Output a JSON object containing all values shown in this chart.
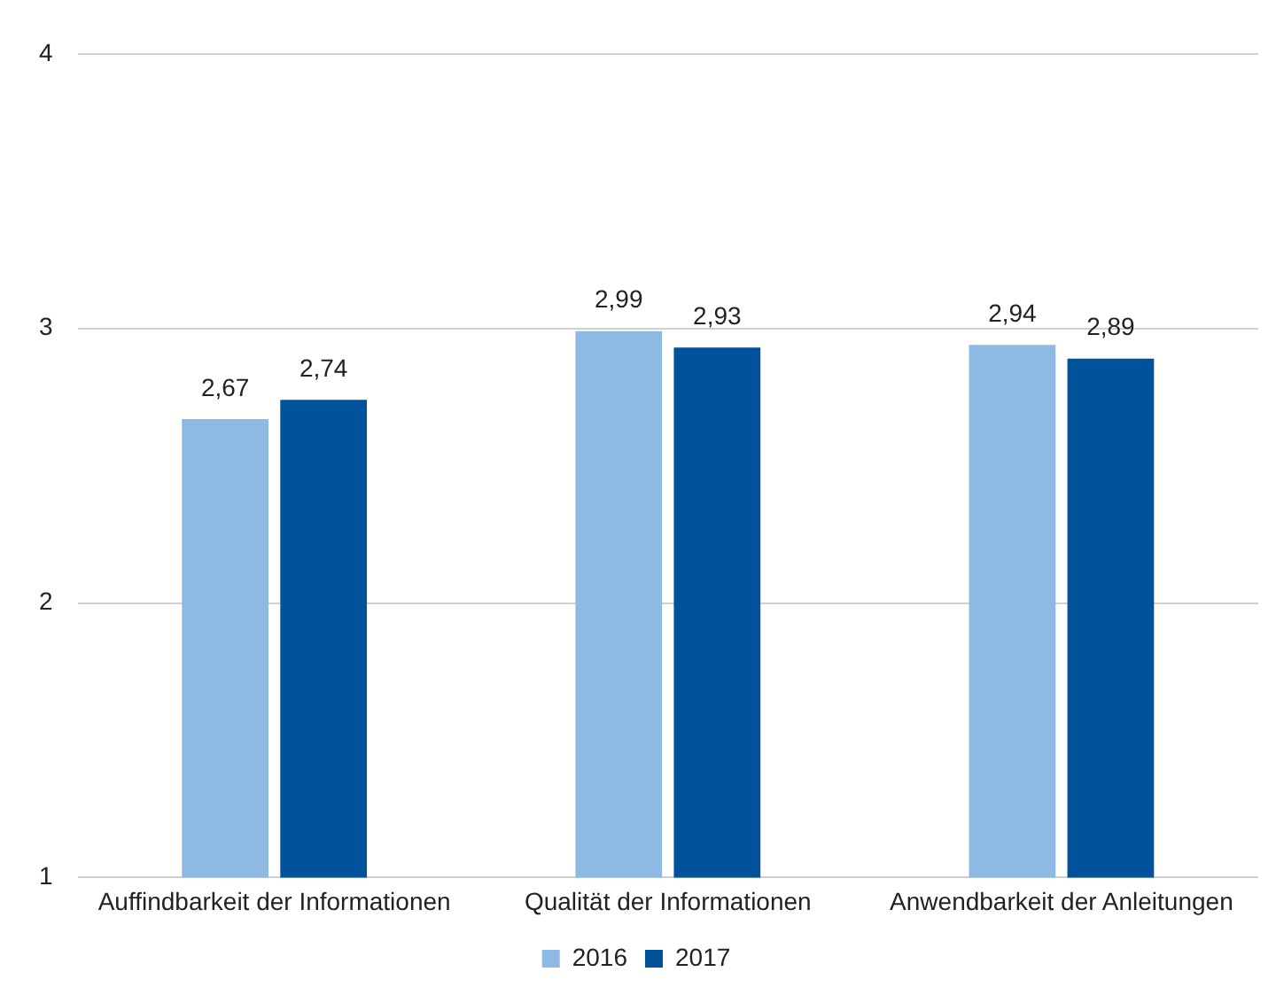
{
  "chart_data": {
    "type": "bar",
    "categories": [
      "Auffindbarkeit der Informationen",
      "Qualität der Informationen",
      "Anwendbarkeit der Anleitungen"
    ],
    "series": [
      {
        "name": "2016",
        "color": "#8db9e3",
        "values": [
          2.67,
          2.99,
          2.94
        ],
        "value_labels": [
          "2,67",
          "2,99",
          "2,94"
        ]
      },
      {
        "name": "2017",
        "color": "#00529b",
        "values": [
          2.74,
          2.93,
          2.89
        ],
        "value_labels": [
          "2,74",
          "2,93",
          "2,89"
        ]
      }
    ],
    "ylim": [
      1,
      4
    ],
    "yticks": [
      1,
      2,
      3,
      4
    ],
    "grid": "y",
    "legend": "bottom"
  }
}
